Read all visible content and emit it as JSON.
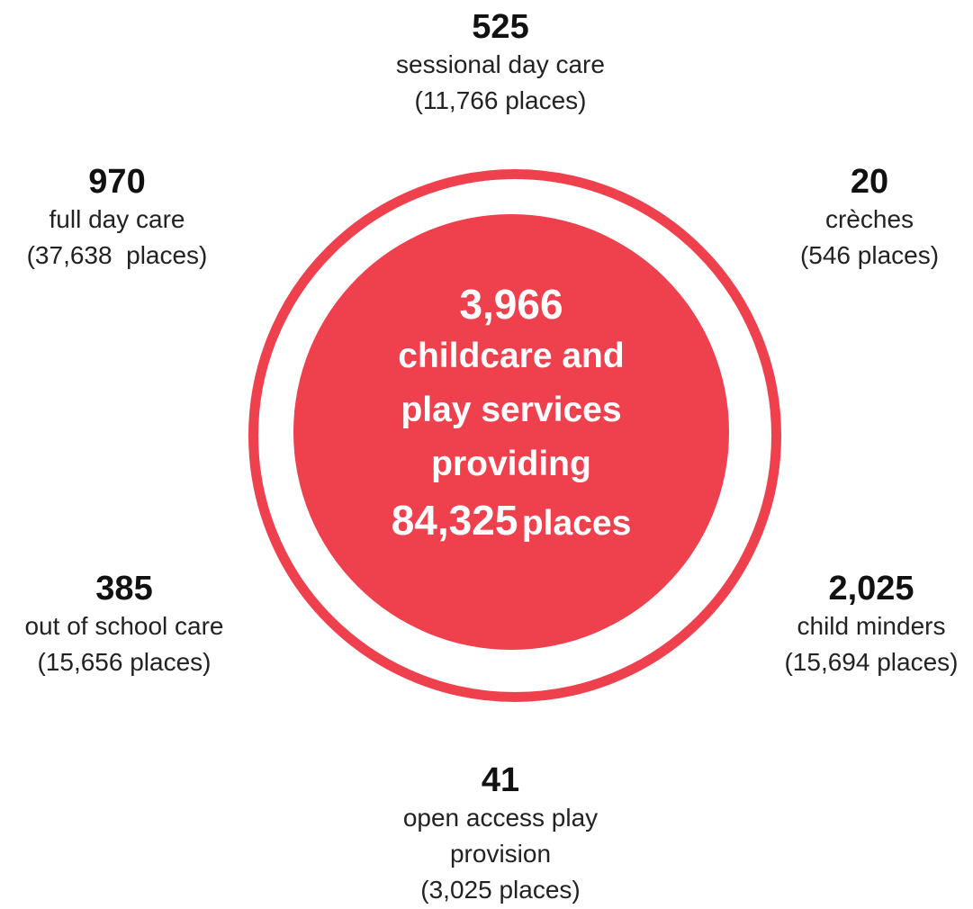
{
  "center": {
    "total_services": "3,966",
    "line1": "childcare and",
    "line2": "play services",
    "line3": "providing",
    "total_places": "84,325",
    "places_word": "places"
  },
  "colors": {
    "accent": "#ef414d",
    "text": "#1a1a1a"
  },
  "categories": [
    {
      "count": "525",
      "label": "sessional day care",
      "places": "(11,766 places)"
    },
    {
      "count": "970",
      "label": "full day care",
      "places": "(37,638  places)"
    },
    {
      "count": "20",
      "label": "crèches",
      "places": "(546 places)"
    },
    {
      "count": "385",
      "label": "out of school care",
      "places": "(15,656 places)"
    },
    {
      "count": "2,025",
      "label": "child minders",
      "places": "(15,694 places)"
    },
    {
      "count": "41",
      "label_line1": "open access play",
      "label_line2": "provision",
      "places": "(3,025 places)"
    }
  ]
}
